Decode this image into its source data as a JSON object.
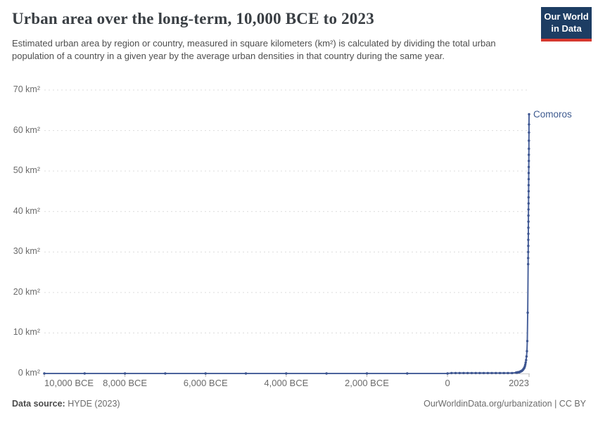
{
  "header": {
    "title": "Urban area over the long-term, 10,000 BCE to 2023",
    "subtitle": "Estimated urban area by region or country, measured in square kilometers (km²) is calculated by dividing the total urban population of a country in a given year by the average urban densities in that country during the same year.",
    "logo": {
      "line1": "Our World",
      "line2": "in Data",
      "bg_color": "#1d3d63",
      "bar_color": "#d7382e"
    }
  },
  "chart_data": {
    "type": "line",
    "title": "Urban area over the long-term, 10,000 BCE to 2023",
    "xlabel": "",
    "ylabel": "km²",
    "x_range": [
      -10000,
      2023
    ],
    "y_range": [
      0,
      70
    ],
    "grid": "horizontal-dashed",
    "grid_color": "#dcdcdc",
    "axis_color": "#c9c9c9",
    "tick_color": "#b5b5b5",
    "y_ticks": [
      {
        "value": 0,
        "label": "0 km²"
      },
      {
        "value": 10,
        "label": "10 km²"
      },
      {
        "value": 20,
        "label": "20 km²"
      },
      {
        "value": 30,
        "label": "30 km²"
      },
      {
        "value": 40,
        "label": "40 km²"
      },
      {
        "value": 50,
        "label": "50 km²"
      },
      {
        "value": 60,
        "label": "60 km²"
      },
      {
        "value": 70,
        "label": "70 km²"
      }
    ],
    "x_ticks": [
      {
        "year": -10000,
        "label": "10,000 BCE",
        "align": "left"
      },
      {
        "year": -8000,
        "label": "8,000 BCE",
        "align": "center"
      },
      {
        "year": -6000,
        "label": "6,000 BCE",
        "align": "center"
      },
      {
        "year": -4000,
        "label": "4,000 BCE",
        "align": "center"
      },
      {
        "year": -2000,
        "label": "2,000 BCE",
        "align": "center"
      },
      {
        "year": 0,
        "label": "0",
        "align": "center"
      },
      {
        "year": 2023,
        "label": "2023",
        "align": "right"
      }
    ],
    "series": [
      {
        "name": "Comoros",
        "line_color": "#4b639c",
        "dot_color": "#3d5590",
        "label_color": "#3d5a8f",
        "points": [
          [
            -10000,
            0
          ],
          [
            -9000,
            0
          ],
          [
            -8000,
            0
          ],
          [
            -7000,
            0
          ],
          [
            -6000,
            0
          ],
          [
            -5000,
            0
          ],
          [
            -4000,
            0
          ],
          [
            -3000,
            0
          ],
          [
            -2000,
            0
          ],
          [
            -1000,
            0
          ],
          [
            0,
            0
          ],
          [
            100,
            0.1
          ],
          [
            200,
            0.1
          ],
          [
            300,
            0.1
          ],
          [
            400,
            0.1
          ],
          [
            500,
            0.1
          ],
          [
            600,
            0.1
          ],
          [
            700,
            0.1
          ],
          [
            800,
            0.1
          ],
          [
            900,
            0.1
          ],
          [
            1000,
            0.1
          ],
          [
            1100,
            0.1
          ],
          [
            1200,
            0.1
          ],
          [
            1300,
            0.1
          ],
          [
            1400,
            0.1
          ],
          [
            1500,
            0.1
          ],
          [
            1600,
            0.1
          ],
          [
            1700,
            0.2
          ],
          [
            1710,
            0.2
          ],
          [
            1720,
            0.2
          ],
          [
            1730,
            0.2
          ],
          [
            1740,
            0.3
          ],
          [
            1750,
            0.3
          ],
          [
            1760,
            0.3
          ],
          [
            1770,
            0.3
          ],
          [
            1780,
            0.3
          ],
          [
            1790,
            0.4
          ],
          [
            1800,
            0.4
          ],
          [
            1810,
            0.5
          ],
          [
            1820,
            0.5
          ],
          [
            1830,
            0.6
          ],
          [
            1840,
            0.6
          ],
          [
            1850,
            0.7
          ],
          [
            1860,
            0.8
          ],
          [
            1870,
            0.9
          ],
          [
            1880,
            1.0
          ],
          [
            1890,
            1.2
          ],
          [
            1900,
            1.3
          ],
          [
            1910,
            1.5
          ],
          [
            1920,
            1.8
          ],
          [
            1930,
            2.2
          ],
          [
            1940,
            2.7
          ],
          [
            1950,
            3.3
          ],
          [
            1960,
            4.2
          ],
          [
            1970,
            5.5
          ],
          [
            1980,
            8.0
          ],
          [
            1990,
            15.0
          ],
          [
            2000,
            27.0
          ],
          [
            2001,
            28.5
          ],
          [
            2002,
            30.0
          ],
          [
            2003,
            31.5
          ],
          [
            2004,
            33.0
          ],
          [
            2005,
            34.5
          ],
          [
            2006,
            36.0
          ],
          [
            2007,
            37.5
          ],
          [
            2008,
            39.0
          ],
          [
            2009,
            40.5
          ],
          [
            2010,
            42.0
          ],
          [
            2011,
            43.5
          ],
          [
            2012,
            45.0
          ],
          [
            2013,
            46.5
          ],
          [
            2014,
            48.0
          ],
          [
            2015,
            49.5
          ],
          [
            2016,
            51.0
          ],
          [
            2017,
            52.5
          ],
          [
            2018,
            54.0
          ],
          [
            2019,
            55.5
          ],
          [
            2020,
            57.5
          ],
          [
            2021,
            59.5
          ],
          [
            2022,
            61.5
          ],
          [
            2023,
            64.0
          ]
        ]
      }
    ]
  },
  "footer": {
    "source_label": "Data source:",
    "source_value": "HYDE (2023)",
    "right_text": "OurWorldinData.org/urbanization | CC BY"
  }
}
